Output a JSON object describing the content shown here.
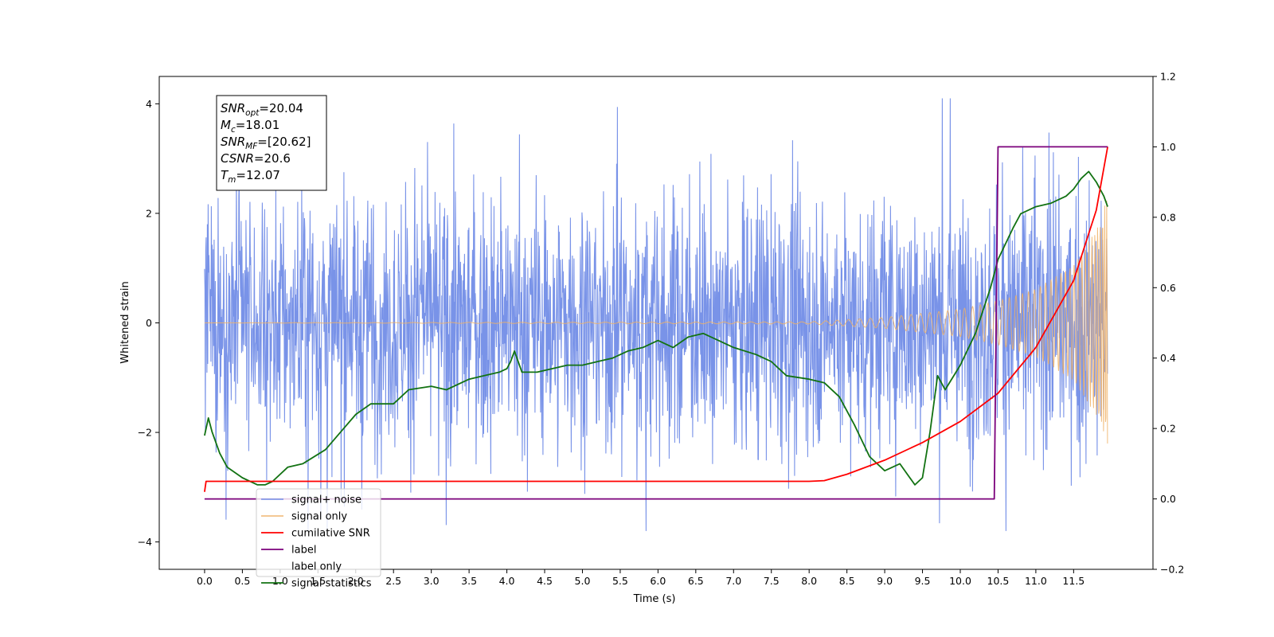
{
  "chart_data": {
    "type": "line",
    "xlabel": "Time (s)",
    "ylabel_left": "Whitened strain",
    "ylim_left": [
      -4.5,
      4.5
    ],
    "ylim_right": [
      -0.2,
      1.2
    ],
    "xlim": [
      -0.6,
      12.55
    ],
    "x_ticks": [
      0.0,
      0.5,
      1.0,
      1.5,
      2.0,
      2.5,
      3.0,
      3.5,
      4.0,
      4.5,
      5.0,
      5.5,
      6.0,
      6.5,
      7.0,
      7.5,
      8.0,
      8.5,
      9.0,
      9.5,
      10.0,
      10.5,
      11.0,
      11.5
    ],
    "x_tick_labels": [
      "0.0",
      "0.5",
      "1.0",
      "1.5",
      "2.0",
      "2.5",
      "3.0",
      "3.5",
      "4.0",
      "4.5",
      "5.0",
      "5.5",
      "6.0",
      "6.5",
      "7.0",
      "7.5",
      "8.0",
      "8.5",
      "9.0",
      "9.5",
      "10.0",
      "10.5",
      "11.0",
      "11.5"
    ],
    "y_ticks_left": [
      -4,
      -2,
      0,
      2,
      4
    ],
    "y_tick_labels_left": [
      "−4",
      "−2",
      "0",
      "2",
      "4"
    ],
    "y_ticks_right": [
      -0.2,
      0.0,
      0.2,
      0.4,
      0.6,
      0.8,
      1.0,
      1.2
    ],
    "y_tick_labels_right": [
      "−0.2",
      "0.0",
      "0.2",
      "0.4",
      "0.6",
      "0.8",
      "1.0",
      "1.2"
    ],
    "grid": false,
    "legend_position": "lower-left",
    "annotation": [
      {
        "var": "SNR",
        "sub": "opt",
        "value": "=20.04"
      },
      {
        "var": "M",
        "sub": "c",
        "value": "=18.01"
      },
      {
        "var": "SNR",
        "sub": "MF",
        "value": "=[20.62]"
      },
      {
        "var": "CSNR",
        "sub": "",
        "value": "=20.6"
      },
      {
        "var": "T",
        "sub": "m",
        "value": "=12.07"
      }
    ],
    "series": [
      {
        "name": "signal+ noise",
        "axis": "left",
        "color": "#6a87e6",
        "kind": "noise_band",
        "x_range": [
          0.0,
          11.95
        ],
        "approx_amplitude": 2.2,
        "approx_peak_max": 4.1,
        "approx_peak_min": -3.8
      },
      {
        "name": "signal only",
        "axis": "left",
        "color": "#f0b266",
        "kind": "chirp_envelope",
        "x_range": [
          0.0,
          11.95
        ],
        "x": [
          0.0,
          8.0,
          9.0,
          10.0,
          10.5,
          11.0,
          11.5,
          11.8,
          11.95
        ],
        "envelope": [
          0.0,
          0.02,
          0.1,
          0.25,
          0.4,
          0.62,
          1.05,
          1.7,
          2.3
        ]
      },
      {
        "name": "cumilative SNR",
        "axis": "right",
        "color": "#ff0000",
        "x": [
          0.0,
          0.02,
          8.0,
          8.2,
          8.5,
          9.0,
          9.5,
          10.0,
          10.5,
          11.0,
          11.5,
          11.8,
          11.95
        ],
        "values": [
          0.02,
          0.05,
          0.05,
          0.052,
          0.07,
          0.11,
          0.16,
          0.22,
          0.3,
          0.43,
          0.62,
          0.82,
          1.0
        ]
      },
      {
        "name": "label",
        "axis": "right",
        "color": "#7b007b",
        "x": [
          0.0,
          10.45,
          10.5,
          11.95
        ],
        "values": [
          0.0,
          0.0,
          1.0,
          1.0
        ]
      },
      {
        "name": "label only",
        "axis": "right",
        "color": "#000000",
        "hidden_in_plot": true
      },
      {
        "name": "signal statistics",
        "axis": "right",
        "color": "#127212",
        "x": [
          0.0,
          0.05,
          0.1,
          0.2,
          0.3,
          0.5,
          0.7,
          0.8,
          0.9,
          1.1,
          1.3,
          1.6,
          1.8,
          2.0,
          2.2,
          2.5,
          2.7,
          3.0,
          3.2,
          3.5,
          3.7,
          3.9,
          4.0,
          4.05,
          4.1,
          4.2,
          4.4,
          4.6,
          4.8,
          5.0,
          5.2,
          5.4,
          5.6,
          5.8,
          6.0,
          6.2,
          6.4,
          6.6,
          6.8,
          7.0,
          7.3,
          7.5,
          7.7,
          8.0,
          8.2,
          8.4,
          8.6,
          8.8,
          9.0,
          9.2,
          9.4,
          9.5,
          9.6,
          9.7,
          9.8,
          10.0,
          10.2,
          10.4,
          10.5,
          10.7,
          10.8,
          11.0,
          11.2,
          11.4,
          11.5,
          11.6,
          11.7,
          11.8,
          11.9,
          11.95
        ],
        "values": [
          0.18,
          0.23,
          0.19,
          0.13,
          0.09,
          0.06,
          0.04,
          0.04,
          0.05,
          0.09,
          0.1,
          0.14,
          0.19,
          0.24,
          0.27,
          0.27,
          0.31,
          0.32,
          0.31,
          0.34,
          0.35,
          0.36,
          0.37,
          0.39,
          0.42,
          0.36,
          0.36,
          0.37,
          0.38,
          0.38,
          0.39,
          0.4,
          0.42,
          0.43,
          0.45,
          0.43,
          0.46,
          0.47,
          0.45,
          0.43,
          0.41,
          0.39,
          0.35,
          0.34,
          0.33,
          0.29,
          0.21,
          0.12,
          0.08,
          0.1,
          0.04,
          0.06,
          0.19,
          0.35,
          0.31,
          0.38,
          0.47,
          0.6,
          0.68,
          0.77,
          0.81,
          0.83,
          0.84,
          0.86,
          0.88,
          0.91,
          0.93,
          0.9,
          0.86,
          0.83
        ]
      }
    ]
  }
}
